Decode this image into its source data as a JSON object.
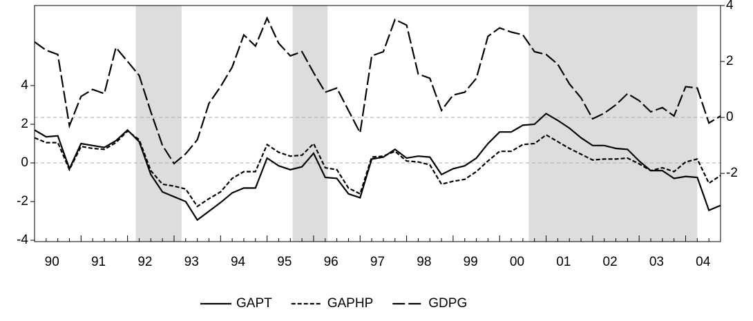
{
  "chart_data": {
    "type": "line",
    "categories": [
      "90",
      null,
      null,
      null,
      "91",
      null,
      null,
      null,
      "92",
      null,
      null,
      null,
      "93",
      null,
      null,
      null,
      "94",
      null,
      null,
      null,
      "95",
      null,
      null,
      null,
      "96",
      null,
      null,
      null,
      "97",
      null,
      null,
      null,
      "98",
      null,
      null,
      null,
      "99",
      null,
      null,
      null,
      "00",
      null,
      null,
      null,
      "01",
      null,
      null,
      null,
      "02",
      null,
      null,
      null,
      "03",
      null,
      null,
      null,
      "04",
      null,
      null,
      null
    ],
    "series": [
      {
        "name": "GAPT",
        "color": "#000000",
        "style": "solid",
        "axis": "y",
        "values": [
          1.7,
          1.35,
          1.4,
          -0.3,
          1.0,
          0.9,
          0.8,
          1.15,
          1.7,
          1.1,
          -0.6,
          -1.5,
          -1.75,
          -2.0,
          -2.95,
          -2.5,
          -2.05,
          -1.55,
          -1.3,
          -1.3,
          0.25,
          -0.15,
          -0.35,
          -0.2,
          0.5,
          -0.75,
          -0.8,
          -1.6,
          -1.8,
          0.2,
          0.3,
          0.7,
          0.25,
          0.35,
          0.3,
          -0.6,
          -0.3,
          -0.15,
          0.25,
          1.0,
          1.6,
          1.6,
          1.95,
          2.0,
          2.55,
          2.2,
          1.8,
          1.3,
          0.9,
          0.9,
          0.75,
          0.7,
          0.1,
          -0.4,
          -0.4,
          -0.8,
          -0.7,
          -0.75,
          -2.45,
          -2.2
        ]
      },
      {
        "name": "GAPHP",
        "color": "#000000",
        "style": "dashed",
        "axis": "y",
        "values": [
          1.3,
          1.05,
          1.05,
          -0.35,
          0.85,
          0.75,
          0.7,
          1.05,
          1.65,
          1.2,
          -0.4,
          -1.1,
          -1.2,
          -1.35,
          -2.25,
          -1.85,
          -1.5,
          -0.8,
          -0.45,
          -0.45,
          0.95,
          0.55,
          0.35,
          0.4,
          1.0,
          -0.25,
          -0.35,
          -1.3,
          -1.6,
          0.3,
          0.35,
          0.6,
          0.1,
          0.05,
          -0.1,
          -1.1,
          -0.95,
          -0.85,
          -0.45,
          0.1,
          0.6,
          0.6,
          0.95,
          1.0,
          1.45,
          1.1,
          0.75,
          0.45,
          0.15,
          0.2,
          0.2,
          0.25,
          -0.05,
          -0.4,
          -0.25,
          -0.45,
          0.05,
          0.2,
          -1.05,
          -0.65
        ]
      },
      {
        "name": "GDPG",
        "color": "#000000",
        "style": "longdash",
        "axis": "y2",
        "values": [
          2.7,
          2.4,
          2.25,
          -0.3,
          0.75,
          1.0,
          0.85,
          2.5,
          2.0,
          1.5,
          0.2,
          -1.0,
          -1.65,
          -1.3,
          -0.8,
          0.5,
          1.1,
          1.8,
          2.95,
          2.55,
          3.55,
          2.65,
          2.2,
          2.35,
          1.6,
          0.9,
          1.05,
          0.25,
          -0.55,
          2.2,
          2.35,
          3.5,
          3.3,
          1.55,
          1.4,
          0.25,
          0.8,
          0.9,
          1.4,
          2.9,
          3.2,
          3.05,
          2.95,
          2.35,
          2.25,
          1.9,
          1.2,
          0.7,
          -0.05,
          0.15,
          0.45,
          0.85,
          0.6,
          0.2,
          0.35,
          0.05,
          1.1,
          1.05,
          -0.2,
          0.05
        ]
      }
    ],
    "ylim": [
      -4.07,
      8.14
    ],
    "yticks": [
      -4,
      -2,
      0,
      2,
      4
    ],
    "y2lim": [
      -4.44,
      4
    ],
    "y2ticks": [
      -2,
      0,
      2,
      4
    ],
    "shaded_regions": [
      [
        8.7,
        12.65
      ],
      [
        22.2,
        25.2
      ],
      [
        42.5,
        57.0
      ]
    ],
    "shade_color": "#dddddd"
  }
}
